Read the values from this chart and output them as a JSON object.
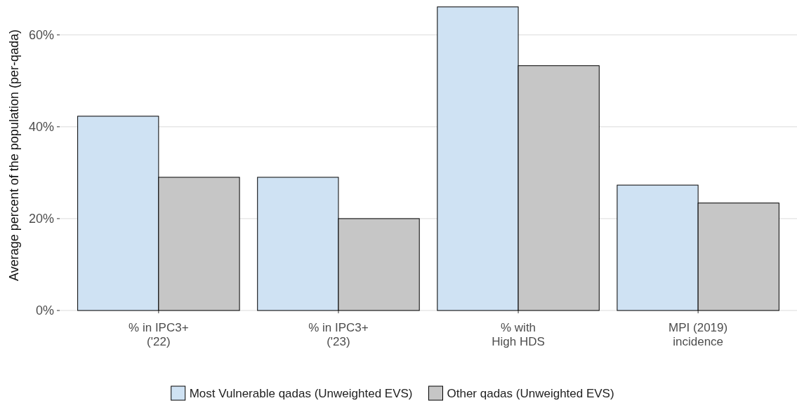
{
  "chart_data": {
    "type": "bar",
    "ylabel": "Average percent of the population (per-qada)",
    "categories": [
      "% in IPC3+\n('22)",
      "% in IPC3+\n('23)",
      "% with\nHigh HDS",
      "MPI (2019)\nincidence"
    ],
    "series": [
      {
        "name": "Most Vulnerable qadas (Unweighted EVS)",
        "color": "#cfe2f3",
        "values": [
          42.3,
          29.0,
          66.1,
          27.3
        ]
      },
      {
        "name": "Other qadas (Unweighted EVS)",
        "color": "#c6c6c6",
        "values": [
          29.0,
          20.0,
          53.3,
          23.4
        ]
      }
    ],
    "ylim": [
      0,
      67.6
    ],
    "yticks": [
      {
        "value": 0,
        "label": "0%"
      },
      {
        "value": 20,
        "label": "20%"
      },
      {
        "value": 40,
        "label": "40%"
      },
      {
        "value": 60,
        "label": "60%"
      }
    ],
    "grid": "y",
    "legend": "bottom"
  }
}
